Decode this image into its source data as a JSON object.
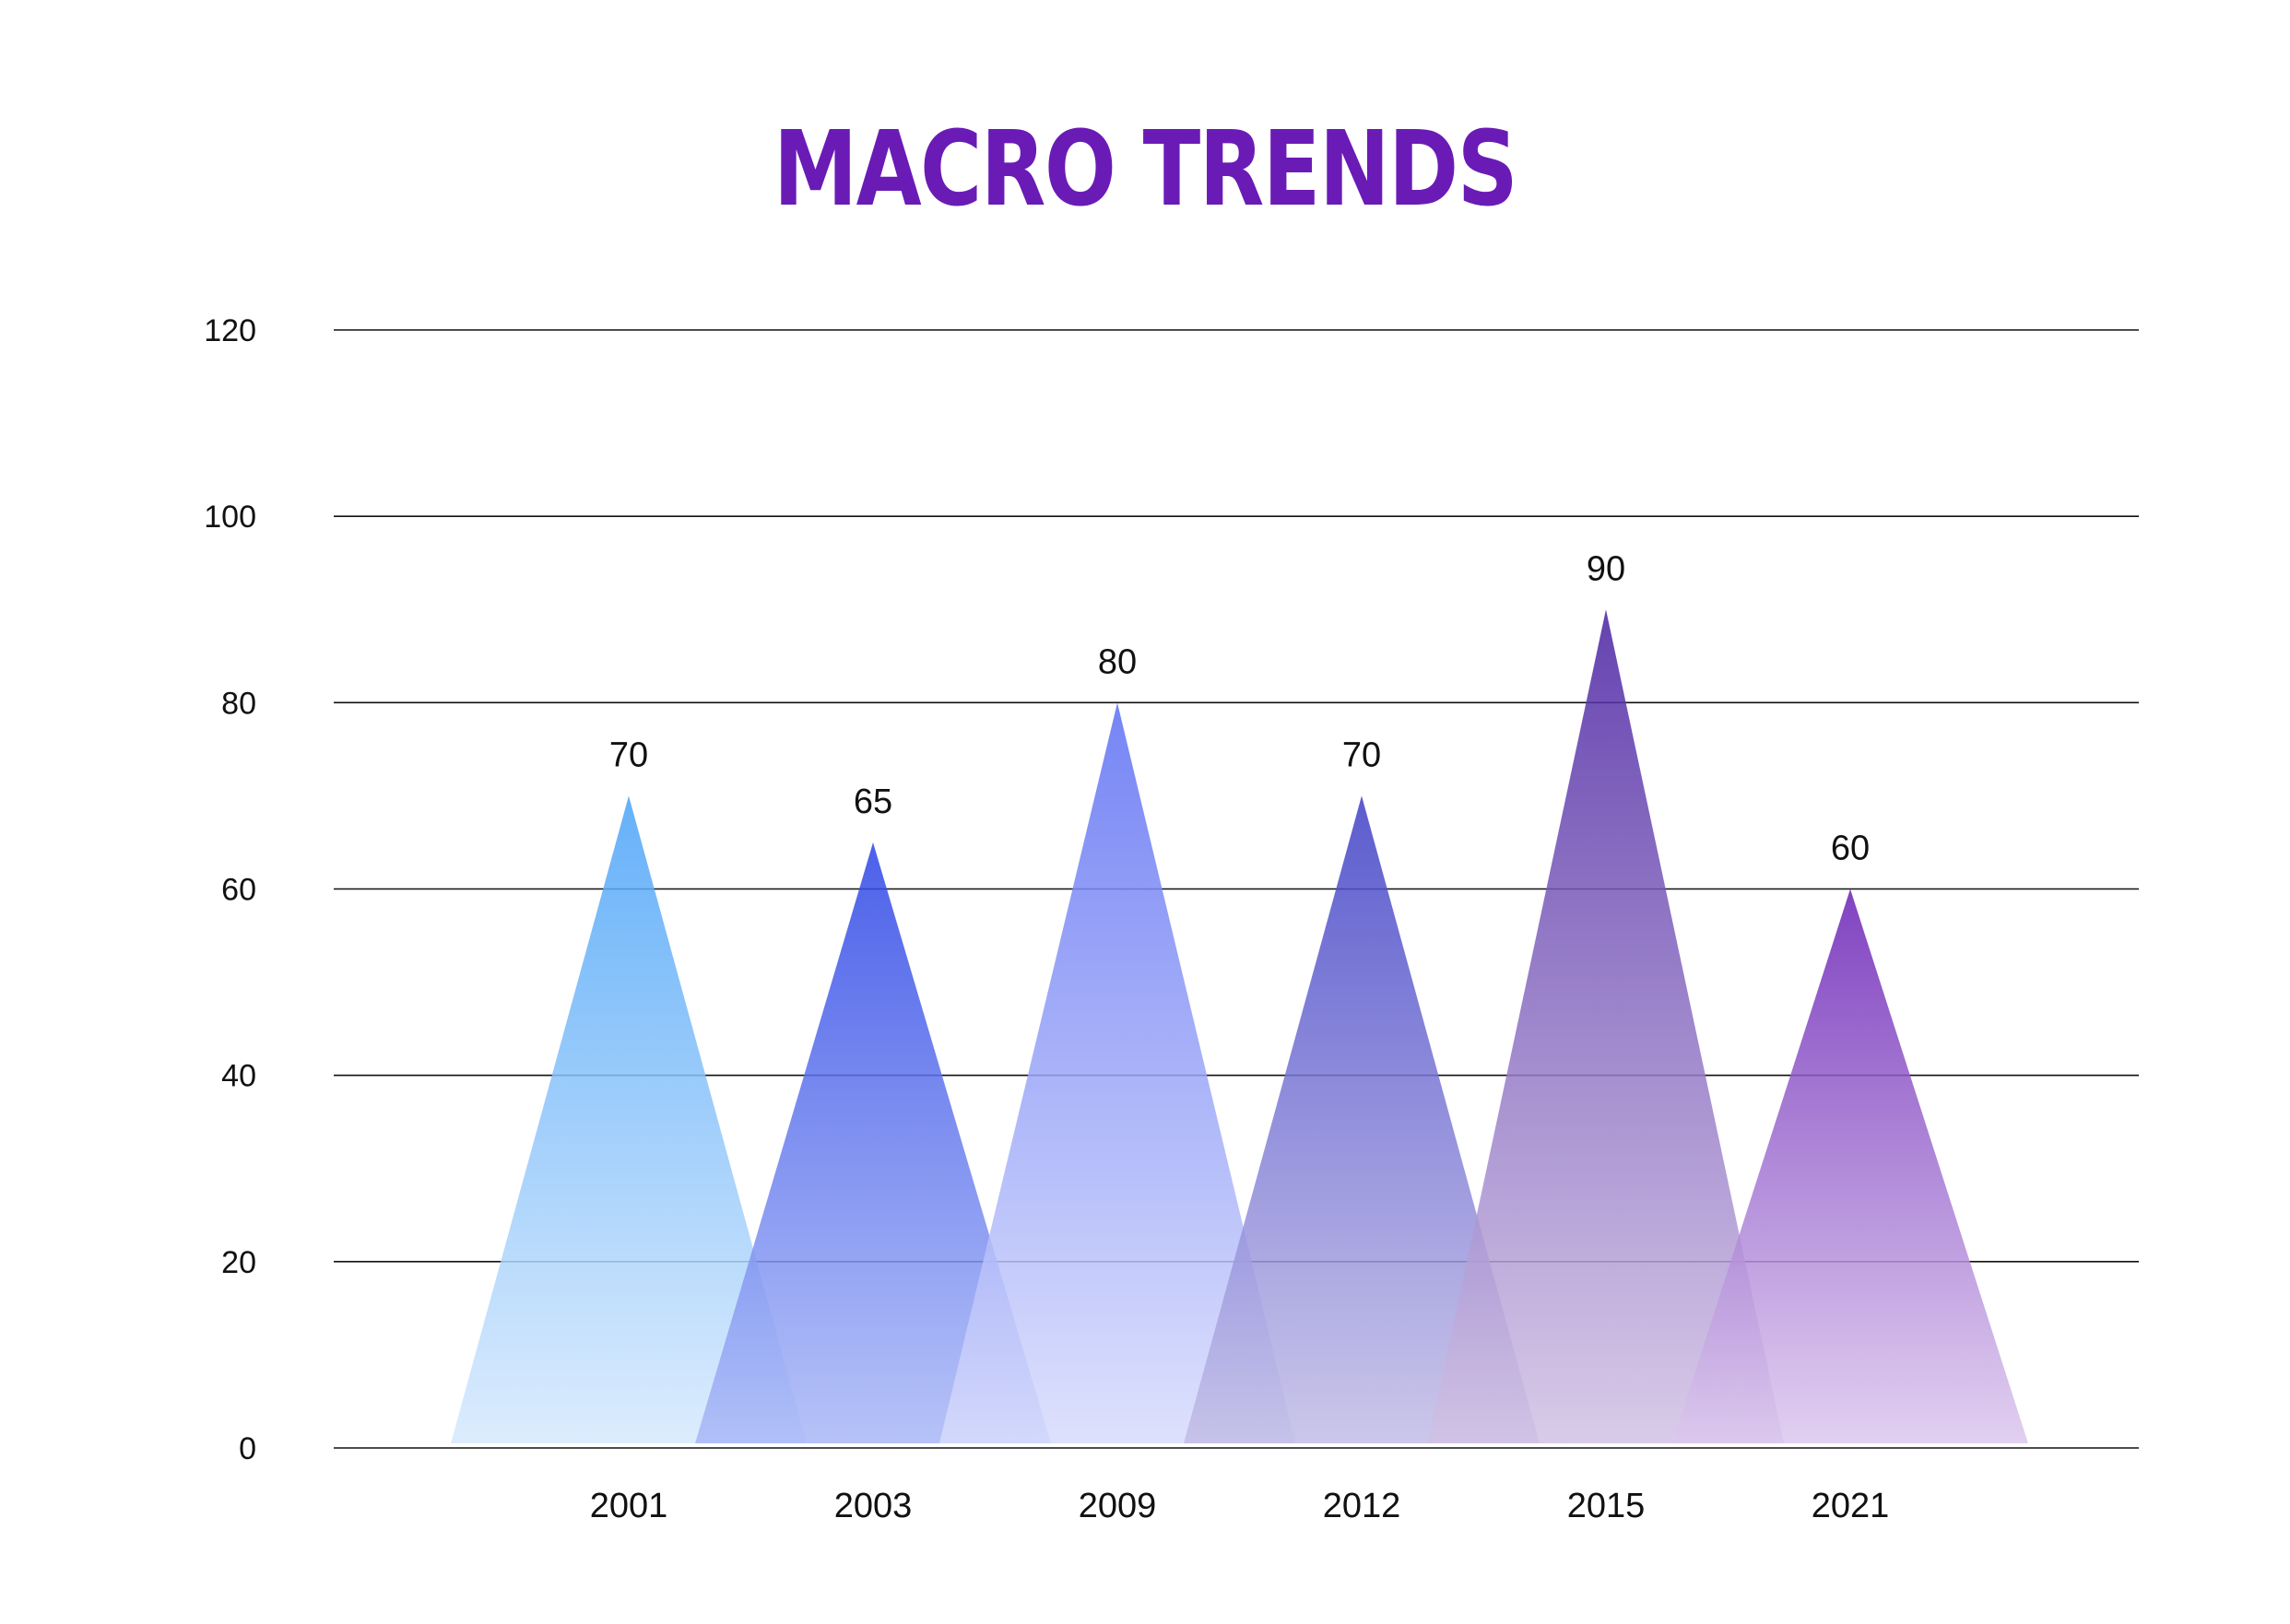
{
  "chart_data": {
    "type": "bar",
    "shape": "triangle",
    "title": "MACRO TRENDS",
    "xlabel": "",
    "ylabel": "",
    "categories": [
      "2001",
      "2003",
      "2009",
      "2012",
      "2015",
      "2021"
    ],
    "values": [
      70,
      65,
      80,
      70,
      90,
      60
    ],
    "ylim": [
      0,
      120
    ],
    "yticks": [
      0,
      20,
      40,
      60,
      80,
      100,
      120
    ],
    "grid": true,
    "legend": "none",
    "colors": [
      {
        "top": "#4aa3f8",
        "bottom": "#d6e9fd"
      },
      {
        "top": "#2c45e6",
        "bottom": "#a9b8f6"
      },
      {
        "top": "#5d6ff3",
        "bottom": "#d8dcfc"
      },
      {
        "top": "#3f3fc6",
        "bottom": "#c2bde6"
      },
      {
        "top": "#4a22a2",
        "bottom": "#d2c2e4"
      },
      {
        "top": "#6a22b6",
        "bottom": "#dcc8ee"
      }
    ],
    "title_color": "#6a1bb6",
    "grid_color": "#111111"
  }
}
